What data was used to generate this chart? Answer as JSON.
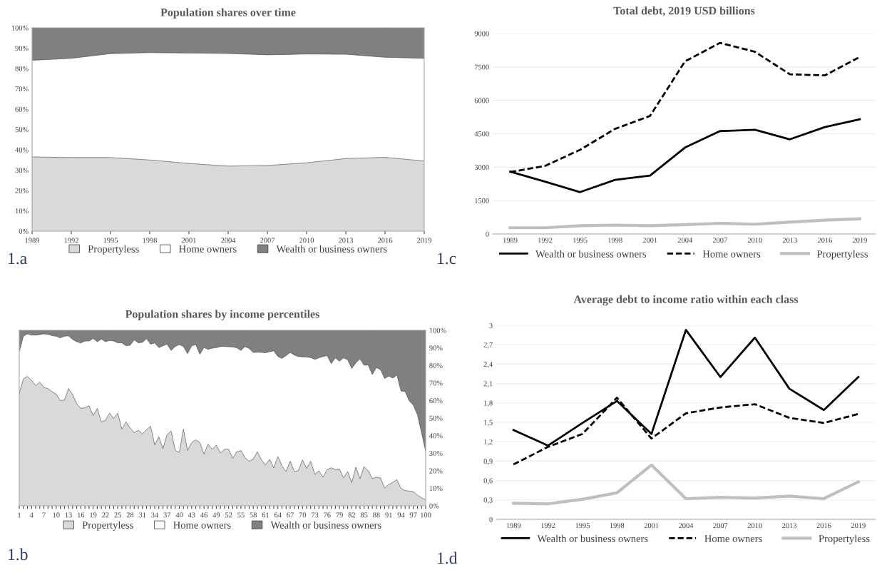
{
  "chart_data": [
    {
      "type": "area",
      "stacked": true,
      "title": "Population shares over time",
      "categories": [
        "1989",
        "1992",
        "1995",
        "1998",
        "2001",
        "2004",
        "2007",
        "2010",
        "2013",
        "2016",
        "2019"
      ],
      "series": [
        {
          "name": "Propertyless",
          "color": "#d9d9d9",
          "values": [
            36.5,
            36.2,
            36.2,
            35,
            33.3,
            32,
            32.3,
            33.6,
            35.7,
            36.3,
            34.5
          ]
        },
        {
          "name": "Home owners",
          "color": "#ffffff",
          "values": [
            47.5,
            48.8,
            51.1,
            52.8,
            54.3,
            55.4,
            54.4,
            53.5,
            51.3,
            49.2,
            50.5
          ]
        },
        {
          "name": "Wealth or business owners",
          "color": "#808080",
          "values": [
            16,
            15,
            12.7,
            12.2,
            12.4,
            12.6,
            13.3,
            12.9,
            13,
            14.5,
            15
          ]
        }
      ],
      "ylim": [
        0,
        100
      ],
      "yticks": [
        {
          "value": 0,
          "label": "0%"
        },
        {
          "value": 10,
          "label": "10%"
        },
        {
          "value": 20,
          "label": "20%"
        },
        {
          "value": 30,
          "label": "30%"
        },
        {
          "value": 40,
          "label": "40%"
        },
        {
          "value": 50,
          "label": "50%"
        },
        {
          "value": 60,
          "label": "60%"
        },
        {
          "value": 70,
          "label": "70%"
        },
        {
          "value": 80,
          "label": "80%"
        },
        {
          "value": 90,
          "label": "90%"
        },
        {
          "value": 100,
          "label": "100%"
        }
      ],
      "grid": false,
      "legend": "bottom",
      "annotations": [
        "1.a"
      ]
    },
    {
      "type": "area",
      "stacked": true,
      "title": "Population shares by income percentiles",
      "categories": [
        "1",
        null,
        null,
        "4",
        null,
        null,
        "7",
        null,
        null,
        "10",
        null,
        null,
        "13",
        null,
        null,
        "16",
        null,
        null,
        "19",
        null,
        null,
        "22",
        null,
        null,
        "25",
        null,
        null,
        "28",
        null,
        null,
        "31",
        null,
        null,
        "34",
        null,
        null,
        "37",
        null,
        null,
        "40",
        null,
        null,
        "43",
        null,
        null,
        "46",
        null,
        null,
        "49",
        null,
        null,
        "52",
        null,
        null,
        "55",
        null,
        null,
        "58",
        null,
        null,
        "61",
        null,
        null,
        "64",
        null,
        null,
        "67",
        null,
        null,
        "70",
        null,
        null,
        "73",
        null,
        null,
        "76",
        null,
        null,
        "79",
        null,
        null,
        "82",
        null,
        null,
        "85",
        null,
        null,
        "88",
        null,
        null,
        "91",
        null,
        null,
        "94",
        null,
        null,
        "97",
        null,
        null,
        "100"
      ],
      "series": [
        {
          "name": "Propertyless",
          "color": "#d9d9d9",
          "values": [
            64,
            72.2,
            73.8,
            71.5,
            68.5,
            70.4,
            67.4,
            66.8,
            65,
            63.6,
            60,
            60.2,
            66.8,
            63.4,
            58.2,
            55.5,
            55.9,
            57,
            51.4,
            55.5,
            47.8,
            48.7,
            52.8,
            49.8,
            52.8,
            43.7,
            47.8,
            44.4,
            41.7,
            43,
            41,
            43.3,
            45.3,
            34.6,
            39.3,
            32.6,
            40.6,
            42.6,
            31.5,
            30.5,
            43.7,
            31.5,
            36,
            37.6,
            36,
            29.4,
            35.1,
            32.2,
            34.6,
            30.1,
            32.2,
            32.2,
            27.1,
            30.8,
            31.5,
            27.4,
            25.4,
            26.7,
            30.8,
            26.1,
            23.3,
            26.5,
            21.6,
            28.1,
            22.7,
            19.5,
            25.4,
            19.7,
            19.9,
            26.1,
            21.3,
            25.4,
            17.9,
            19.9,
            16.3,
            20.6,
            21.7,
            20.6,
            20.9,
            15.9,
            19.5,
            13.2,
            22,
            15.5,
            22.3,
            19.9,
            15.5,
            16.3,
            15.9,
            10.2,
            12.1,
            13.4,
            14.9,
            9.8,
            8.7,
            8.4,
            8.1,
            6.1,
            4.6,
            3.4
          ]
        },
        {
          "name": "Home owners",
          "color": "#ffffff",
          "values": [
            23.8,
            24.4,
            24.2,
            25.8,
            28.8,
            27.2,
            30.6,
            30.9,
            32,
            33,
            35.7,
            36.4,
            30.1,
            31.4,
            35.3,
            37.3,
            38,
            36.9,
            43.9,
            38,
            47.2,
            44.8,
            41.4,
            44.1,
            40.1,
            49.2,
            43.4,
            47.1,
            52.9,
            49.9,
            52.1,
            52,
            46.8,
            58.2,
            50.8,
            58.6,
            51.5,
            45.9,
            59.3,
            61.4,
            47.1,
            55.2,
            55.2,
            54.3,
            50.4,
            60.8,
            54,
            57.6,
            55.5,
            60.7,
            58.6,
            58.4,
            63.4,
            59.2,
            57,
            63.4,
            64.2,
            60.7,
            56.7,
            61.3,
            63.9,
            61.3,
            66.7,
            57,
            61.3,
            66.1,
            62,
            66.2,
            65.2,
            58.8,
            63.5,
            59.1,
            65.5,
            64.4,
            68.8,
            65,
            59.3,
            63.7,
            61.5,
            68.4,
            63.7,
            65.1,
            59.5,
            68.2,
            57.8,
            60.3,
            59.3,
            62.5,
            61.7,
            62.4,
            61.8,
            59.4,
            59.6,
            55.6,
            56.4,
            51.4,
            49.2,
            45.7,
            37.1,
            27.6
          ]
        },
        {
          "name": "Wealth or business owners",
          "color": "#808080",
          "values": [
            12.2,
            3.4,
            2,
            2.7,
            2.7,
            2.4,
            2,
            2.3,
            3,
            3.4,
            4.3,
            3.4,
            3.1,
            5.2,
            6.5,
            7.2,
            6.1,
            6.1,
            4.7,
            6.5,
            5,
            6.5,
            5.8,
            6.1,
            7.1,
            7.1,
            8.8,
            8.5,
            5.4,
            7.1,
            6.9,
            4.7,
            7.9,
            7.2,
            9.9,
            8.8,
            7.9,
            11.5,
            9.2,
            8.1,
            9.2,
            13.3,
            8.8,
            8.1,
            13.6,
            9.8,
            10.9,
            10.2,
            9.9,
            9.2,
            9.2,
            9.4,
            9.5,
            10,
            11.5,
            9.2,
            10.4,
            12.6,
            12.5,
            12.6,
            12.8,
            12.2,
            11.7,
            14.9,
            16,
            14.4,
            12.6,
            14.1,
            14.9,
            15.1,
            15.2,
            15.5,
            16.6,
            15.7,
            14.9,
            14.4,
            19,
            15.7,
            17.6,
            15.7,
            16.8,
            21.7,
            18.5,
            16.3,
            19.9,
            19.8,
            25.2,
            21.2,
            22.4,
            27.4,
            26.1,
            27.2,
            25.5,
            34.6,
            34.9,
            40.2,
            42.7,
            48.2,
            58.3,
            69
          ]
        }
      ],
      "ylim": [
        0,
        100
      ],
      "yticks": [
        {
          "value": 0,
          "label": "0%"
        },
        {
          "value": 10,
          "label": "10%"
        },
        {
          "value": 20,
          "label": "20%"
        },
        {
          "value": 30,
          "label": "30%"
        },
        {
          "value": 40,
          "label": "40%"
        },
        {
          "value": 50,
          "label": "50%"
        },
        {
          "value": 60,
          "label": "60%"
        },
        {
          "value": 70,
          "label": "70%"
        },
        {
          "value": 80,
          "label": "80%"
        },
        {
          "value": 90,
          "label": "90%"
        },
        {
          "value": 100,
          "label": "100%"
        }
      ],
      "grid": false,
      "legend": "bottom",
      "annotations": [
        "1.b"
      ]
    },
    {
      "type": "line",
      "title": "Total debt, 2019 USD billions",
      "categories": [
        "1989",
        "1992",
        "1995",
        "1998",
        "2001",
        "2004",
        "2007",
        "2010",
        "2013",
        "2016",
        "2019"
      ],
      "series": [
        {
          "name": "Wealth or business owners",
          "color": "#000000",
          "line_style": "solid",
          "values": [
            2800,
            2350,
            1880,
            2430,
            2620,
            3880,
            4620,
            4680,
            4250,
            4800,
            5150
          ]
        },
        {
          "name": "Home owners",
          "color": "#000000",
          "line_style": "dashed",
          "values": [
            2780,
            3060,
            3780,
            4720,
            5300,
            7750,
            8580,
            8180,
            7170,
            7120,
            7950
          ]
        },
        {
          "name": "Propertyless",
          "color": "#bfbfbf",
          "line_style": "solid",
          "values": [
            280,
            280,
            370,
            400,
            370,
            420,
            480,
            440,
            530,
            620,
            680
          ]
        }
      ],
      "ylim": [
        0,
        9000
      ],
      "yticks": [
        0,
        1500,
        3000,
        4500,
        6000,
        7500,
        9000
      ],
      "grid": "y",
      "legend": "bottom",
      "marker": "none",
      "annotations": [
        "1.c"
      ]
    },
    {
      "type": "line",
      "title": "Average debt to income ratio within each class",
      "categories": [
        "1989",
        "1992",
        "1995",
        "1998",
        "2001",
        "2004",
        "2007",
        "2010",
        "2013",
        "2016",
        "2019"
      ],
      "series": [
        {
          "name": "Wealth or business owners",
          "color": "#000000",
          "line_style": "solid",
          "values": [
            1.38,
            1.14,
            1.49,
            1.83,
            1.32,
            2.93,
            2.2,
            2.81,
            2.02,
            1.69,
            2.2
          ]
        },
        {
          "name": "Home owners",
          "color": "#000000",
          "line_style": "dashed",
          "values": [
            0.85,
            1.12,
            1.32,
            1.88,
            1.25,
            1.64,
            1.73,
            1.78,
            1.57,
            1.49,
            1.63
          ]
        },
        {
          "name": "Propertyless",
          "color": "#bfbfbf",
          "line_style": "solid",
          "values": [
            0.25,
            0.24,
            0.31,
            0.41,
            0.84,
            0.32,
            0.34,
            0.33,
            0.36,
            0.32,
            0.58
          ]
        }
      ],
      "ylim": [
        0,
        3
      ],
      "yticks": [
        0,
        {
          "value": 0.3,
          "label": "0,3"
        },
        {
          "value": 0.6,
          "label": "0,6"
        },
        {
          "value": 0.9,
          "label": "0,9"
        },
        {
          "value": 1.2,
          "label": "1,2"
        },
        {
          "value": 1.5,
          "label": "1,5"
        },
        {
          "value": 1.8,
          "label": "1,8"
        },
        {
          "value": 2.1,
          "label": "2,1"
        },
        {
          "value": 2.4,
          "label": "2,4"
        },
        {
          "value": 2.7,
          "label": "2,7"
        },
        3
      ],
      "grid": "y",
      "legend": "bottom",
      "marker": "none",
      "annotations": [
        "1.d"
      ]
    }
  ]
}
